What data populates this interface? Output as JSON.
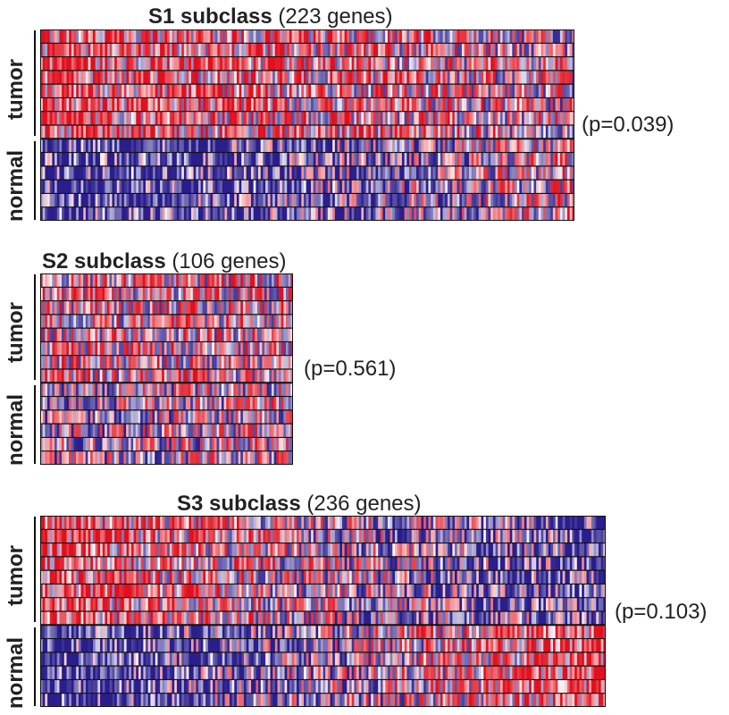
{
  "chart_data": [
    {
      "type": "heatmap",
      "title_bold": "S1 subclass",
      "title_rest": "(223 genes)",
      "genes": 223,
      "groups": [
        {
          "label": "tumor",
          "rows": 8
        },
        {
          "label": "normal",
          "rows": 6
        }
      ],
      "p_value": "(p=0.039)",
      "pattern": "tumor rows predominantly red (high expression), normal rows predominantly blue (low), with red increasing toward the right in normal rows"
    },
    {
      "type": "heatmap",
      "title_bold": "S2 subclass",
      "title_rest": "(106 genes)",
      "genes": 106,
      "groups": [
        {
          "label": "tumor",
          "rows": 8
        },
        {
          "label": "normal",
          "rows": 6
        }
      ],
      "p_value": "(p=0.561)",
      "pattern": "mixed red and blue across both groups"
    },
    {
      "type": "heatmap",
      "title_bold": "S3 subclass",
      "title_rest": "(236 genes)",
      "genes": 236,
      "groups": [
        {
          "label": "tumor",
          "rows": 8
        },
        {
          "label": "normal",
          "rows": 6
        }
      ],
      "p_value": "(p=0.103)",
      "pattern": "tumor rows red on left fading to blue on right; normal rows blue on left turning red on right"
    }
  ],
  "colors": {
    "high": "#e0101e",
    "low": "#2a1e8c",
    "mid": "#ffffff",
    "row_separator": "#111111",
    "text": "#222222"
  }
}
